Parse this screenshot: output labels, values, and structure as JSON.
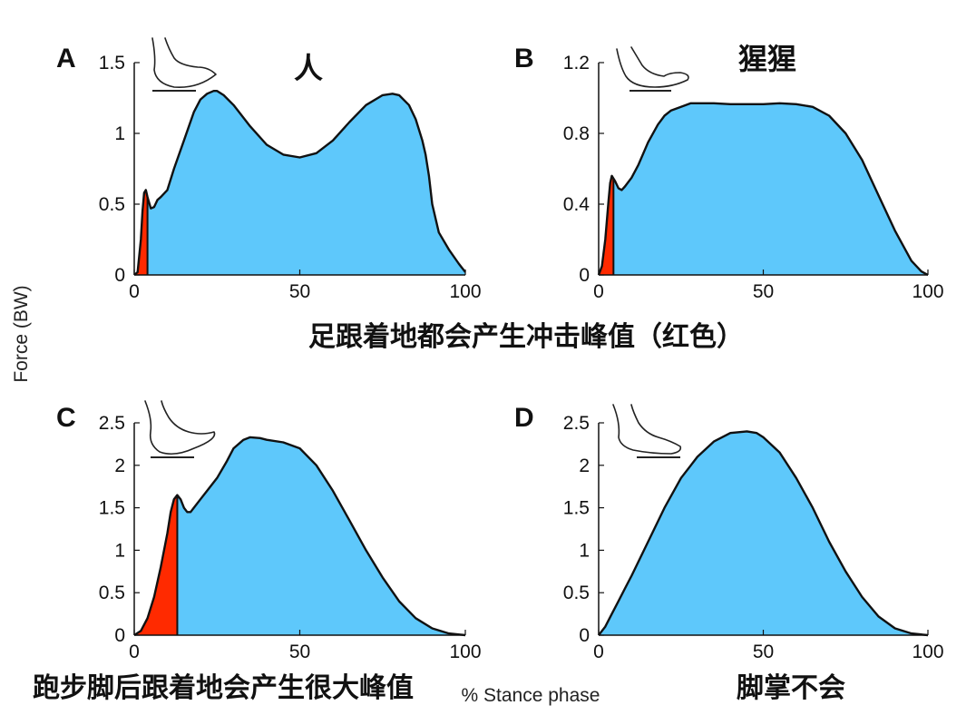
{
  "ylabel": "Force (BW)",
  "xlabel": "% Stance phase",
  "captions": {
    "top": "足跟着地都会产生冲击峰值（红色）",
    "bottom_left": "跑步脚后跟着地会产生很大峰值",
    "bottom_right": "脚掌不会"
  },
  "colors": {
    "fill": "#5ec8fb",
    "impact": "#ff2a00",
    "stroke": "#111111"
  },
  "chart_data": [
    {
      "type": "area",
      "panel": "A",
      "title": "人",
      "icon": "walking-heel-strike-foot-icon",
      "xlim": [
        0,
        100
      ],
      "ylim": [
        0,
        1.5
      ],
      "xticks": [
        "0",
        "50",
        "100"
      ],
      "yticks": [
        "0",
        "0.5",
        "1",
        "1.5"
      ],
      "x": [
        0,
        1,
        2,
        2.5,
        3,
        3.5,
        4,
        5,
        6,
        7,
        8,
        10,
        12,
        15,
        18,
        20,
        22,
        24,
        25,
        27,
        30,
        35,
        40,
        45,
        50,
        55,
        60,
        65,
        70,
        75,
        78,
        80,
        83,
        85,
        87,
        88,
        89,
        90,
        92,
        95,
        98,
        100
      ],
      "y": [
        0,
        0.02,
        0.25,
        0.45,
        0.58,
        0.6,
        0.55,
        0.47,
        0.48,
        0.53,
        0.55,
        0.6,
        0.75,
        0.95,
        1.15,
        1.24,
        1.28,
        1.3,
        1.3,
        1.27,
        1.2,
        1.05,
        0.92,
        0.85,
        0.83,
        0.86,
        0.95,
        1.08,
        1.2,
        1.27,
        1.28,
        1.27,
        1.2,
        1.1,
        0.95,
        0.85,
        0.7,
        0.5,
        0.3,
        0.18,
        0.08,
        0.02
      ],
      "impact_end_x": 4
    },
    {
      "type": "area",
      "panel": "B",
      "title": "猩猩",
      "icon": "chimp-heel-strike-foot-icon",
      "xlim": [
        0,
        100
      ],
      "ylim": [
        0,
        1.2
      ],
      "xticks": [
        "0",
        "50",
        "100"
      ],
      "yticks": [
        "0",
        "0.4",
        "0.8",
        "1.2"
      ],
      "x": [
        0,
        1,
        2,
        3,
        3.5,
        4,
        5,
        6,
        7,
        8,
        10,
        12,
        15,
        18,
        20,
        22,
        25,
        28,
        30,
        35,
        40,
        45,
        50,
        55,
        60,
        65,
        70,
        75,
        80,
        85,
        90,
        95,
        98,
        100
      ],
      "y": [
        0,
        0.05,
        0.2,
        0.42,
        0.52,
        0.56,
        0.53,
        0.49,
        0.48,
        0.5,
        0.55,
        0.62,
        0.75,
        0.85,
        0.9,
        0.93,
        0.95,
        0.97,
        0.97,
        0.97,
        0.965,
        0.965,
        0.965,
        0.97,
        0.965,
        0.95,
        0.9,
        0.8,
        0.65,
        0.45,
        0.25,
        0.08,
        0.02,
        0
      ],
      "impact_end_x": 4.5
    },
    {
      "type": "area",
      "panel": "C",
      "title": "",
      "icon": "running-heel-strike-foot-icon",
      "xlim": [
        0,
        100
      ],
      "ylim": [
        0,
        2.5
      ],
      "xticks": [
        "0",
        "50",
        "100"
      ],
      "yticks": [
        "0",
        "0.5",
        "1",
        "1.5",
        "2",
        "2.5"
      ],
      "x": [
        0,
        2,
        4,
        6,
        8,
        10,
        11,
        12,
        13,
        14,
        15,
        16,
        17,
        18,
        20,
        22,
        25,
        28,
        30,
        33,
        35,
        38,
        40,
        45,
        50,
        55,
        60,
        65,
        70,
        75,
        80,
        85,
        90,
        95,
        100
      ],
      "y": [
        0,
        0.05,
        0.2,
        0.45,
        0.8,
        1.2,
        1.45,
        1.6,
        1.65,
        1.6,
        1.5,
        1.45,
        1.45,
        1.5,
        1.6,
        1.7,
        1.85,
        2.05,
        2.2,
        2.3,
        2.33,
        2.32,
        2.3,
        2.27,
        2.2,
        2.0,
        1.7,
        1.35,
        1.0,
        0.68,
        0.4,
        0.2,
        0.08,
        0.02,
        0
      ],
      "impact_end_x": 13
    },
    {
      "type": "area",
      "panel": "D",
      "title": "",
      "icon": "forefoot-strike-foot-icon",
      "xlim": [
        0,
        100
      ],
      "ylim": [
        0,
        2.5
      ],
      "xticks": [
        "0",
        "50",
        "100"
      ],
      "yticks": [
        "0",
        "0.5",
        "1",
        "1.5",
        "2",
        "2.5"
      ],
      "x": [
        0,
        2,
        4,
        6,
        8,
        10,
        15,
        20,
        25,
        30,
        35,
        40,
        45,
        48,
        50,
        55,
        60,
        65,
        70,
        75,
        80,
        85,
        90,
        95,
        100
      ],
      "y": [
        0,
        0.1,
        0.25,
        0.4,
        0.55,
        0.7,
        1.1,
        1.5,
        1.85,
        2.1,
        2.28,
        2.38,
        2.4,
        2.38,
        2.33,
        2.15,
        1.85,
        1.5,
        1.1,
        0.75,
        0.45,
        0.22,
        0.08,
        0.02,
        0
      ],
      "impact_end_x": null
    }
  ]
}
